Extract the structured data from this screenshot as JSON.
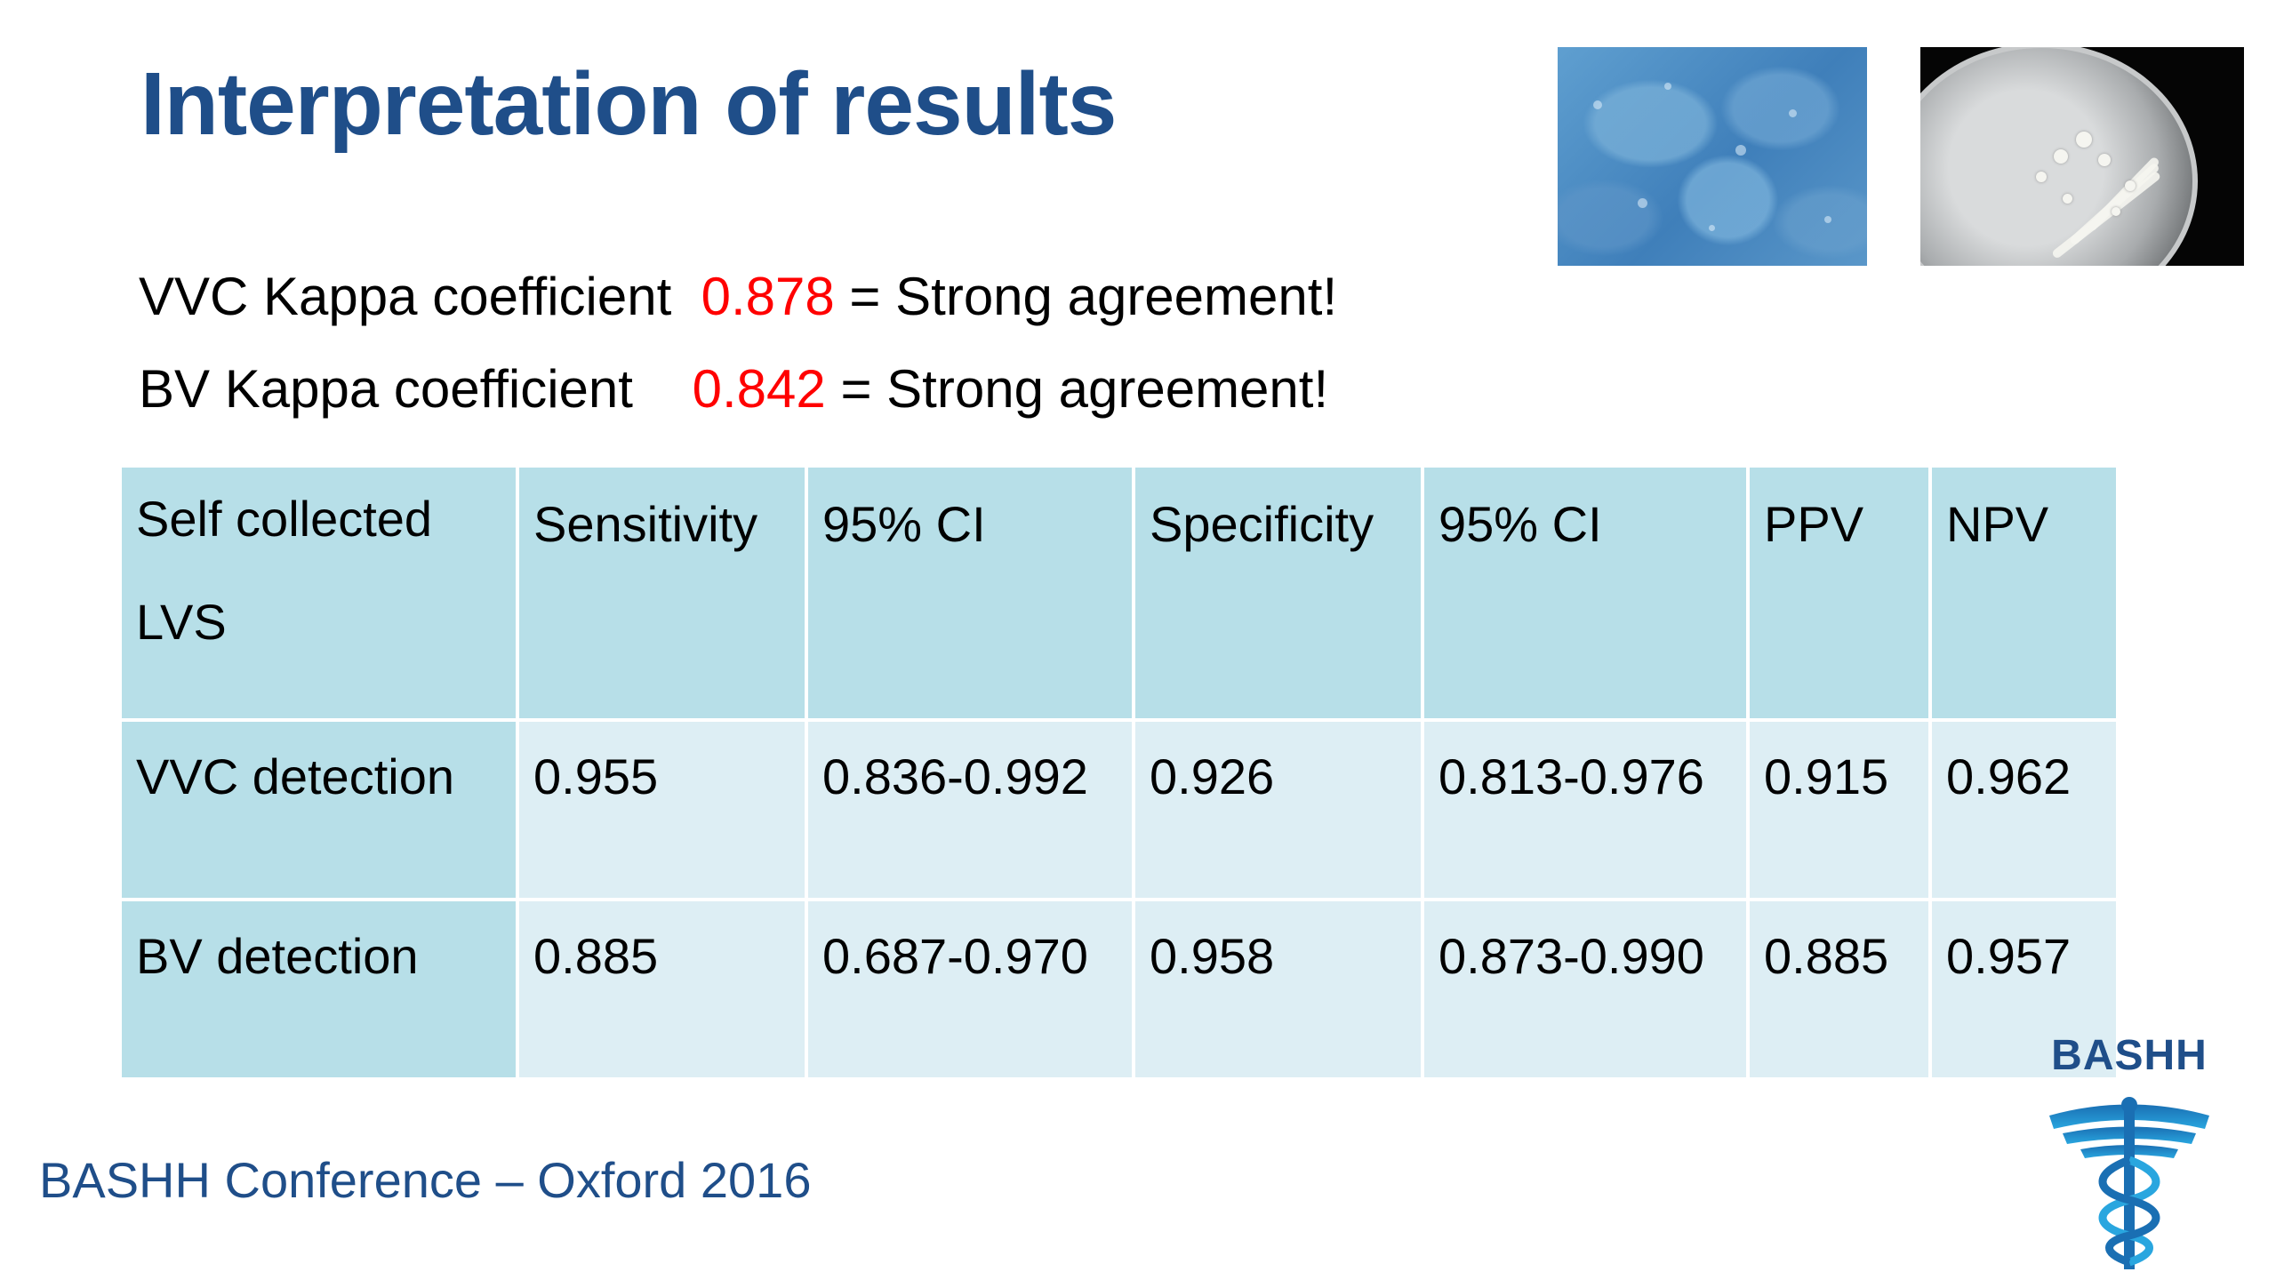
{
  "slide": {
    "title": "Interpretation of results"
  },
  "stats": [
    {
      "label": "VVC Kappa coefficient  ",
      "value": "0.878",
      "suffix": " = Strong agreement!"
    },
    {
      "label": "BV Kappa coefficient    ",
      "value": "0.842",
      "suffix": " = Strong agreement!"
    }
  ],
  "table": {
    "header": {
      "c0_line1": "Self collected",
      "c0_line2": "LVS",
      "c1": "Sensitivity",
      "c2": "95% CI",
      "c3": "Specificity",
      "c4": "95% CI",
      "c5": "PPV",
      "c6": "NPV"
    },
    "rows": [
      {
        "label": "VVC  detection",
        "sensitivity": "0.955",
        "sens_ci": "0.836-0.992",
        "specificity": "0.926",
        "spec_ci": "0.813-0.976",
        "ppv": "0.915",
        "npv": "0.962"
      },
      {
        "label": "BV detection",
        "sensitivity": "0.885",
        "sens_ci": "0.687-0.970",
        "specificity": "0.958",
        "spec_ci": "0.873-0.990",
        "ppv": "0.885",
        "npv": "0.957"
      }
    ]
  },
  "footer": {
    "text": "BASHH Conference – Oxford 2016"
  },
  "logo": {
    "text": "BASHH",
    "icon": "caduceus-icon"
  },
  "images": [
    {
      "icon": "microscopy-cells-photo"
    },
    {
      "icon": "culture-plate-photo"
    }
  ],
  "colors": {
    "title": "#1f4e89",
    "highlight": "#ff0000",
    "table_header": "#b7dfe8",
    "table_body": "#ddeef4"
  }
}
